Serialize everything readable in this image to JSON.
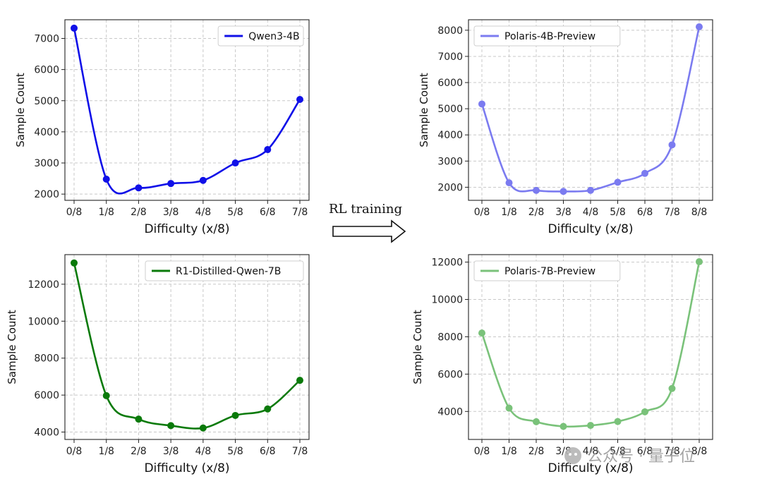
{
  "chart_data": [
    {
      "type": "line",
      "title": "",
      "xlabel": "Difficulty (x/8)",
      "ylabel": "Sample Count",
      "categories": [
        "0/8",
        "1/8",
        "2/8",
        "3/8",
        "4/8",
        "5/8",
        "6/8",
        "7/8"
      ],
      "ylim": [
        1800,
        7600
      ],
      "yticks": [
        2000,
        3000,
        4000,
        5000,
        6000,
        7000
      ],
      "grid": true,
      "legend": "upper-right",
      "series": [
        {
          "name": "Qwen3-4B",
          "color": "#1010e8",
          "values": [
            7330,
            2480,
            2200,
            2340,
            2440,
            3000,
            3430,
            5040
          ]
        }
      ]
    },
    {
      "type": "line",
      "title": "",
      "xlabel": "Difficulty (x/8)",
      "ylabel": "Sample Count",
      "categories": [
        "0/8",
        "1/8",
        "2/8",
        "3/8",
        "4/8",
        "5/8",
        "6/8",
        "7/8",
        "8/8"
      ],
      "ylim": [
        1500,
        8400
      ],
      "yticks": [
        2000,
        3000,
        4000,
        5000,
        6000,
        7000,
        8000
      ],
      "grid": true,
      "legend": "upper-left",
      "series": [
        {
          "name": "Polaris-4B-Preview",
          "color": "#7b7bf0",
          "values": [
            5180,
            2170,
            1880,
            1840,
            1880,
            2190,
            2530,
            3620,
            8130
          ]
        }
      ]
    },
    {
      "type": "line",
      "title": "",
      "xlabel": "Difficulty (x/8)",
      "ylabel": "Sample Count",
      "categories": [
        "0/8",
        "1/8",
        "2/8",
        "3/8",
        "4/8",
        "5/8",
        "6/8",
        "7/8"
      ],
      "ylim": [
        3600,
        13600
      ],
      "yticks": [
        4000,
        6000,
        8000,
        10000,
        12000
      ],
      "grid": true,
      "legend": "upper-right",
      "series": [
        {
          "name": "R1-Distilled-Qwen-7B",
          "color": "#0a7a0a",
          "values": [
            13150,
            5970,
            4700,
            4350,
            4220,
            4900,
            5250,
            6800
          ]
        }
      ]
    },
    {
      "type": "line",
      "title": "",
      "xlabel": "Difficulty (x/8)",
      "ylabel": "Sample Count",
      "categories": [
        "0/8",
        "1/8",
        "2/8",
        "3/8",
        "4/8",
        "5/8",
        "6/8",
        "7/8",
        "8/8"
      ],
      "ylim": [
        2500,
        12400
      ],
      "yticks": [
        4000,
        6000,
        8000,
        10000,
        12000
      ],
      "grid": true,
      "legend": "upper-left",
      "series": [
        {
          "name": "Polaris-7B-Preview",
          "color": "#7ac27a",
          "values": [
            8200,
            4180,
            3450,
            3200,
            3250,
            3460,
            3980,
            5230,
            12020
          ]
        }
      ]
    }
  ],
  "arrow": {
    "label": "RL training"
  },
  "watermark": {
    "text": "公众号 · 量子位"
  }
}
